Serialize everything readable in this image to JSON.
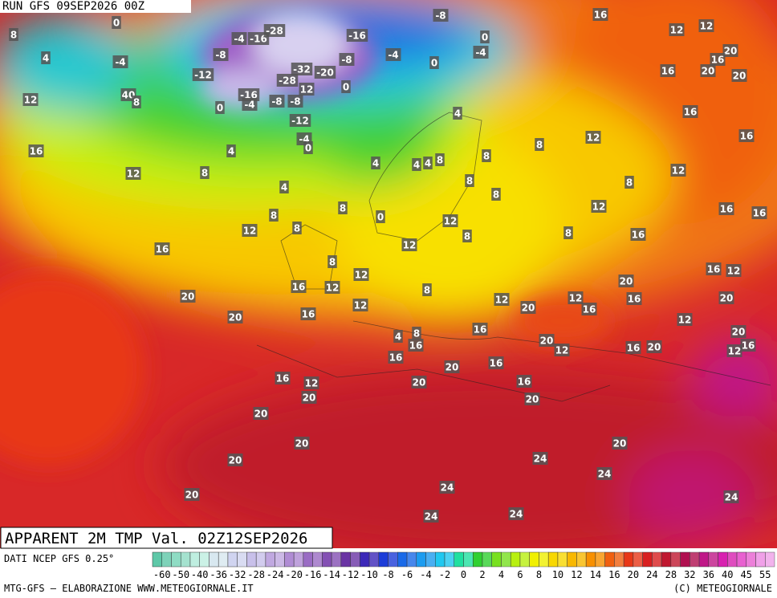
{
  "header": {
    "run": "RUN GFS 09SEP2026 00Z"
  },
  "map": {
    "title": "APPARENT 2M TMP Val. 02Z12SEP2026",
    "labels": [
      0,
      8,
      4,
      -4,
      -4,
      -16,
      -28,
      -8,
      -12,
      12,
      40,
      8,
      0,
      -16,
      -4,
      -8,
      -8,
      12,
      -28,
      -32,
      -20,
      -8,
      -16,
      -4,
      -8,
      0,
      -4,
      0,
      0,
      -12,
      -4,
      0,
      16,
      4,
      12,
      8,
      4,
      4,
      4,
      4,
      8,
      4,
      8,
      8,
      8,
      8,
      12,
      16,
      12,
      12,
      20,
      16,
      20,
      20,
      16,
      16,
      16,
      12,
      8,
      12,
      8,
      16,
      16,
      16,
      0,
      8,
      8,
      12,
      8,
      12,
      8,
      12,
      16,
      8,
      12,
      16,
      12,
      8,
      12,
      20,
      20,
      16,
      12,
      20,
      12,
      16,
      20,
      16,
      16,
      12,
      20,
      12,
      20,
      16,
      12,
      16,
      20,
      12,
      4,
      8,
      16,
      16,
      16,
      20,
      16,
      12,
      20,
      20,
      20,
      16,
      16,
      20,
      20,
      20,
      20,
      20,
      24,
      24,
      24,
      20,
      24,
      24,
      24
    ]
  },
  "footer": {
    "source": "DATI NCEP GFS 0.25°",
    "credit": "MTG-GFS — ELABORAZIONE WWW.METEOGIORNALE.IT",
    "copyright": "(C) METEOGIORNALE"
  },
  "legend": {
    "ticks": [
      -60,
      -50,
      -40,
      -36,
      -32,
      -28,
      -24,
      -20,
      -16,
      -14,
      -12,
      -10,
      -8,
      -6,
      -4,
      -2,
      0,
      2,
      4,
      6,
      8,
      10,
      12,
      14,
      16,
      20,
      24,
      28,
      32,
      36,
      40,
      45,
      55
    ],
    "colors": [
      "#5ec8a8",
      "#8fdcc4",
      "#bfeee0",
      "#d8e8f0",
      "#d0d4f0",
      "#c8c0ea",
      "#c0a8e0",
      "#b08cd4",
      "#9a6cc4",
      "#8450b4",
      "#6a34a4",
      "#3c28b8",
      "#1c3cd8",
      "#1a6ae8",
      "#1c9cf0",
      "#20c8f0",
      "#20e0a0",
      "#30d030",
      "#78e020",
      "#b8f010",
      "#f0f000",
      "#f8d800",
      "#f8b800",
      "#f89000",
      "#f06010",
      "#e83818",
      "#d82020",
      "#c01830",
      "#b01050",
      "#c01888",
      "#d820b0",
      "#e860d0",
      "#f0a0e8"
    ]
  }
}
